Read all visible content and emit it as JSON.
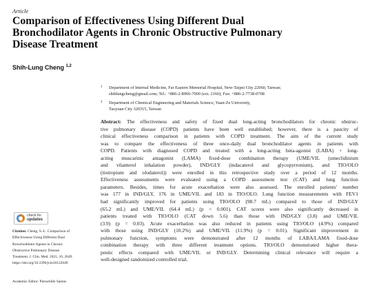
{
  "article_type": "Article",
  "title_lines": [
    "Comparison of Effectiveness Using Different Dual",
    "Bronchodilator Agents in Chronic Obstructive Pulmonary",
    "Disease Treatment"
  ],
  "author": {
    "name": "Shih-Lung Cheng",
    "affil_marks": "1,2"
  },
  "affiliations": [
    {
      "num": "1",
      "lines": [
        "Department of Internal Medicine, Far Eastern Memorial Hospital, New-Taipei City 22060, Taiwan;",
        "shihlungcheng@gmail.com; Tel.: +886-2-8966-7000 (ext. 2160); Fax: +886-2-7738-0708"
      ]
    },
    {
      "num": "2",
      "lines": [
        "Department of Chemical Engineering and Materials Science, Yuan-Ze University,",
        "Taoyuan City 320315, Taiwan"
      ]
    }
  ],
  "abstract": {
    "label": "Abstract:",
    "lines": [
      " The effectiveness and safety of fixed dual long-acting bronchodilators for chronic obstruc-",
      "tive pulmonary disease (COPD) patients have been well established; however, there is a paucity of",
      "clinical effectiveness comparison in patients with COPD treatment. The aim of the current study",
      "was to compare the effectiveness of three once-daily dual bronchodilator agents in patients with",
      "COPD. Patients with diagnosed COPD and treated with a long-acting beta-agonist (LABA) + long-",
      "acting muscarinic antagonist (LAMA) fixed-dose combination therapy (UME/VIL (umeclidinium",
      "and vilanterol inhalation powder), IND/GLY (indacaterol and glycopyrronium), and TIO/OLO",
      "(tiotropium and olodaterol)) were enrolled in this retrospective study over a period of 12 months.",
      "Effectiveness assessments were evaluated using a COPD assessment test (CAT) and lung function",
      "parameters. Besides, times for acute exacerbation were also assessed. The enrolled patients' number",
      "was 177 in IND/GLY, 176 in UME/VIL and 183 in TIO/OLO. Lung function measurements with FEV1",
      "had significantly improved for patients using TIO/OLO (98.7 mL) compared to those of IND/GLY",
      "(65.2 mL) and UME/VIL (64.4 mL) (p < 0.001).  CAT scores were also significantly decreased in",
      "patients treated with TIO/OLO (CAT down 5.6) than those with IND/GLY (3.8) and UME/VIL",
      "(3.9) (p = 0.03). Acute exacerbation was also reduced in patients using TIO/OLO (4.9%) compared",
      "with those using IND/GLY (10.2%) and UME/VIL (11.9%) (p = 0.01). Significant improvement in",
      "pulmonary function, symptoms were demonstrated after 12 months of LABA/LAMA fixed-dose",
      "combination therapy with three different treatment options. TIO/OLO demonstrated higher thera-",
      "peutic effects compared with UME/VIL or IND/GLY. Determining clinical relevance will require a",
      "well-designed randomized controlled trial."
    ]
  },
  "updates_badge": {
    "line1": "check for",
    "line2": "updates"
  },
  "citation": {
    "label": "Citation:",
    "lines": [
      " Cheng, S.-L. Comparison of",
      "Effectiveness Using Different Dual",
      "Bronchodilator Agents in Chronic",
      "Obstructive Pulmonary Disease",
      "Treatment. J. Clin. Med. 2021, 10, 2649.",
      "https://doi.org/10.3390/jcm10122649"
    ]
  },
  "academic_editor": "Academic Editor: Pierachille Santus"
}
